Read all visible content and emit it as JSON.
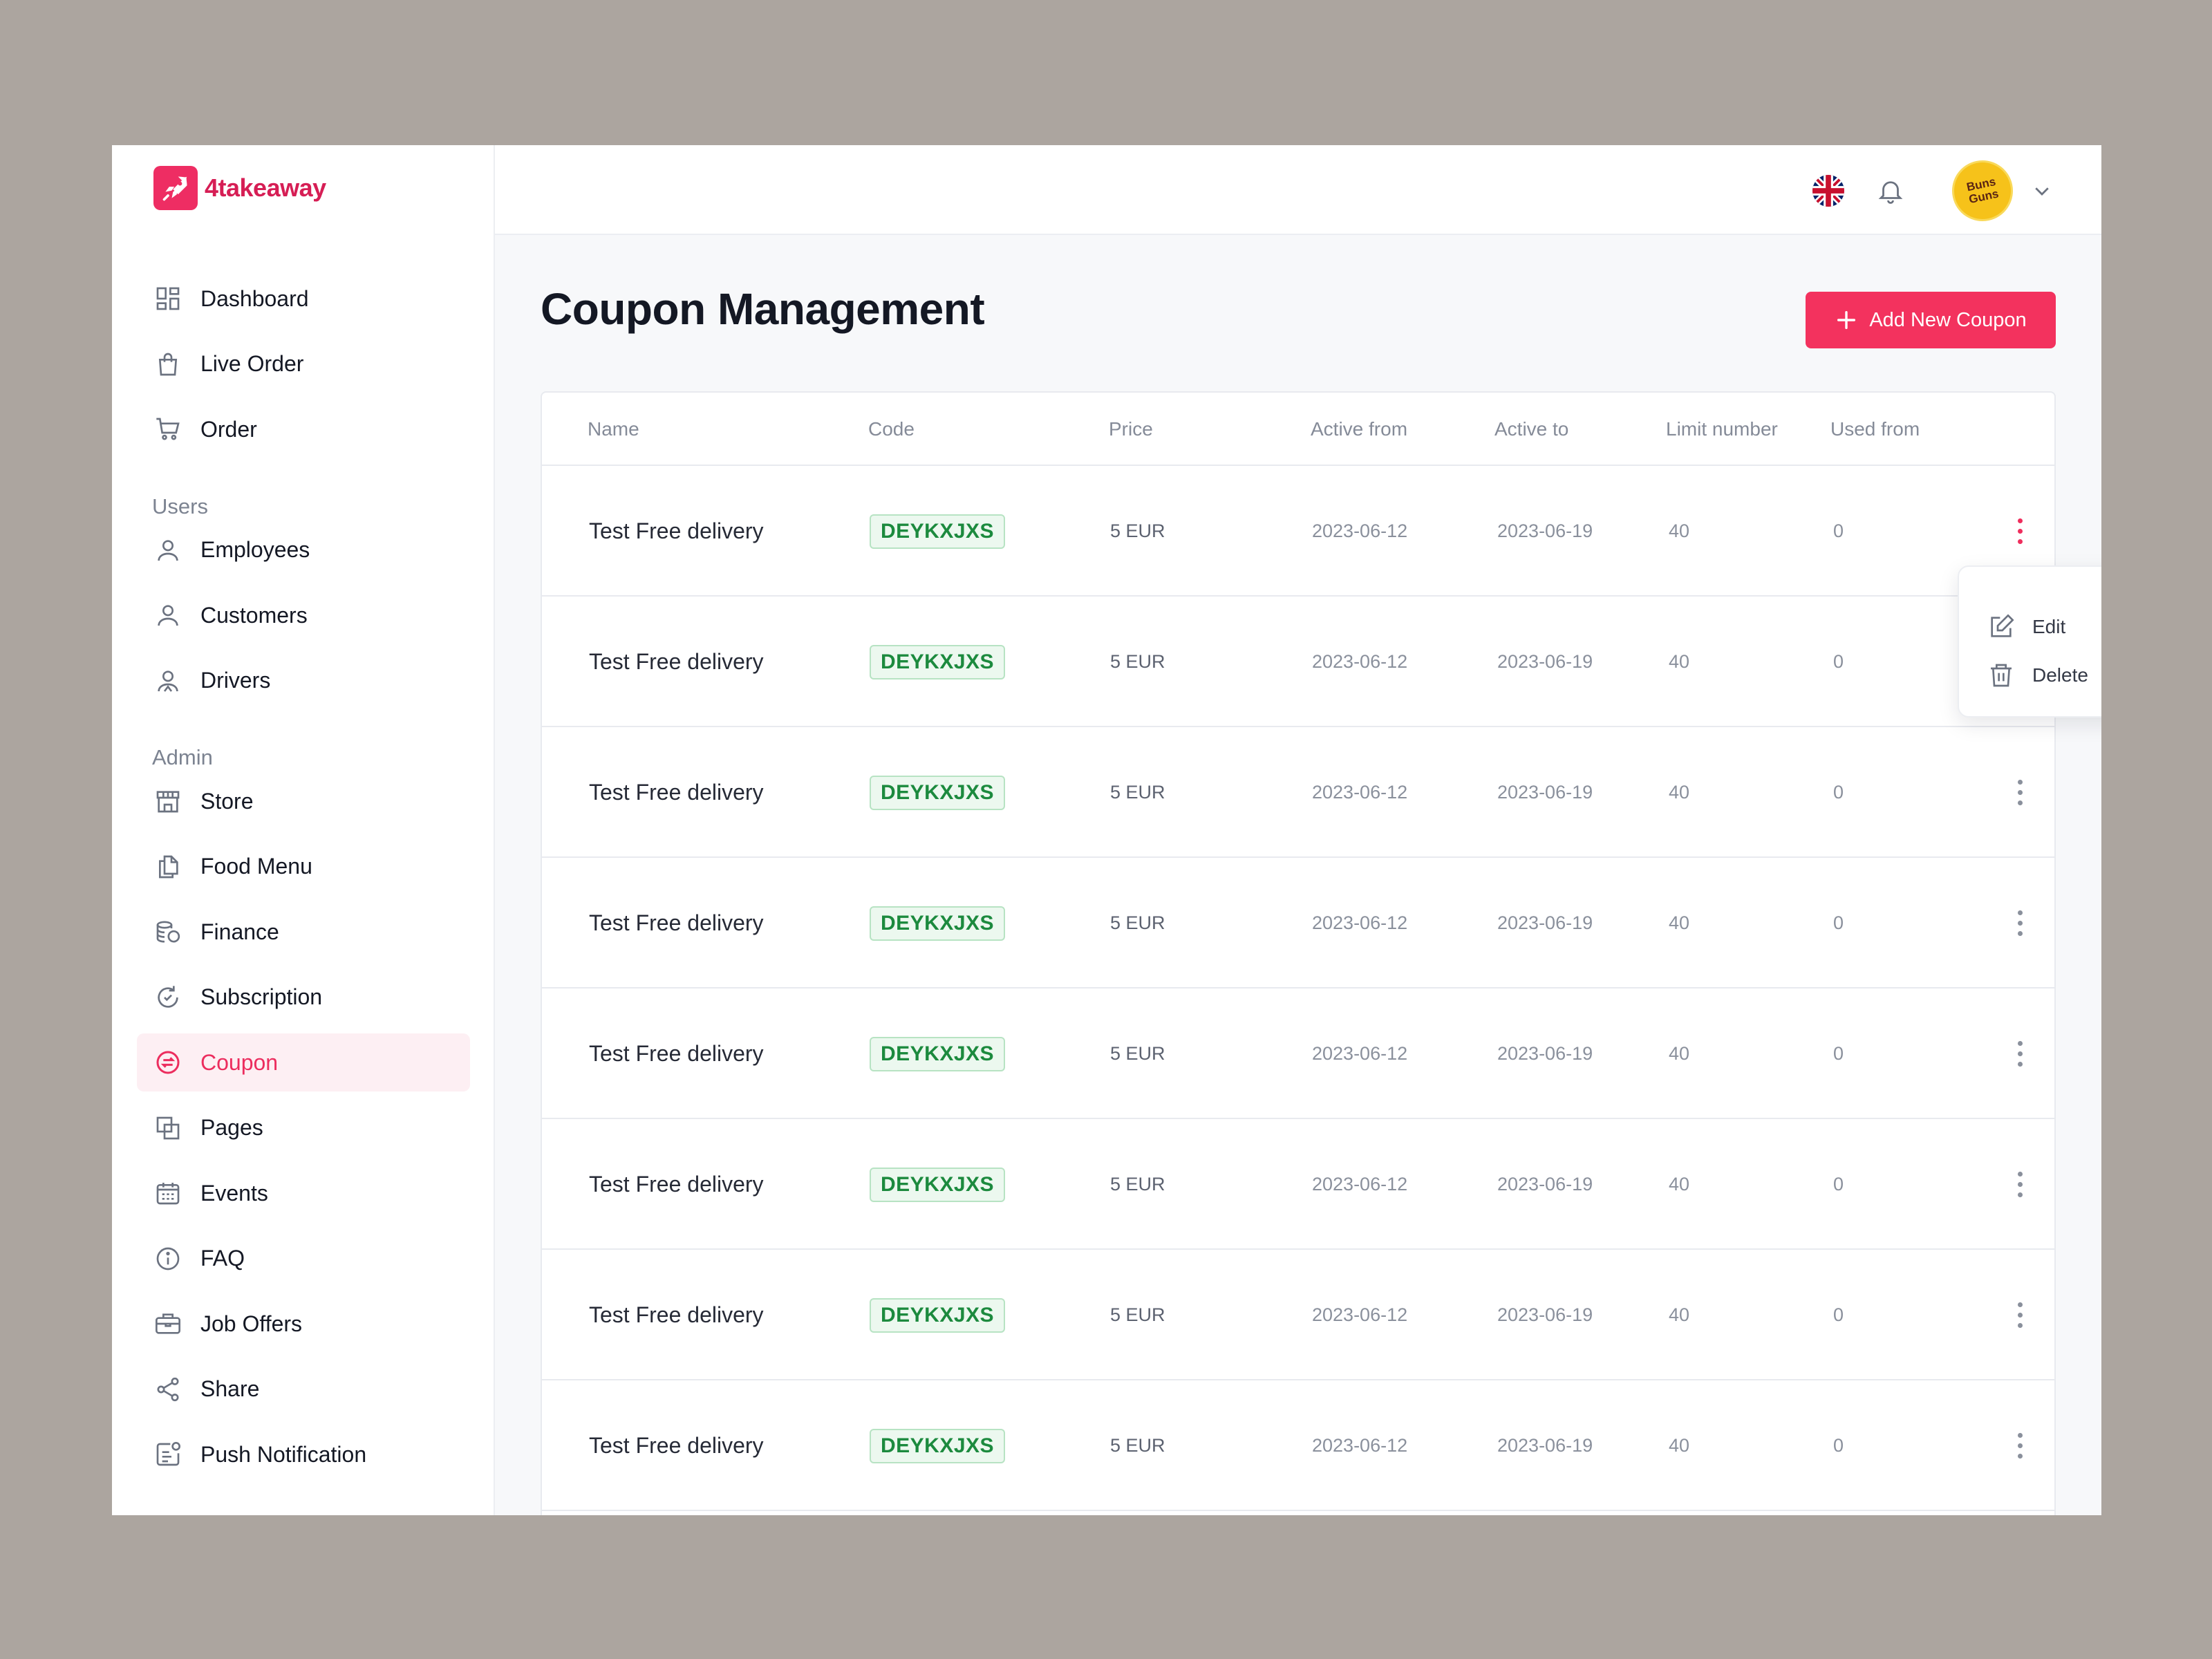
{
  "brand": {
    "name": "4takeaway",
    "accent": "#ee2d63"
  },
  "sidebar": {
    "main_items": [
      {
        "label": "Dashboard",
        "icon": "dashboard-icon"
      },
      {
        "label": "Live Order",
        "icon": "bag-icon"
      },
      {
        "label": "Order",
        "icon": "cart-icon"
      }
    ],
    "users_label": "Users",
    "users_items": [
      {
        "label": "Employees",
        "icon": "user-icon"
      },
      {
        "label": "Customers",
        "icon": "user-icon"
      },
      {
        "label": "Drivers",
        "icon": "driver-icon"
      }
    ],
    "admin_label": "Admin",
    "admin_items": [
      {
        "label": "Store",
        "icon": "store-icon"
      },
      {
        "label": "Food Menu",
        "icon": "documents-icon"
      },
      {
        "label": "Finance",
        "icon": "coins-icon"
      },
      {
        "label": "Subscription",
        "icon": "subscription-icon"
      },
      {
        "label": "Coupon",
        "icon": "coupon-icon",
        "active": true
      },
      {
        "label": "Pages",
        "icon": "pages-icon"
      },
      {
        "label": "Events",
        "icon": "calendar-icon"
      },
      {
        "label": "FAQ",
        "icon": "info-icon"
      },
      {
        "label": "Job Offers",
        "icon": "briefcase-icon"
      },
      {
        "label": "Share",
        "icon": "share-icon"
      },
      {
        "label": "Push Notification",
        "icon": "notification-icon"
      }
    ]
  },
  "header": {
    "language_icon": "uk-flag-icon",
    "notification_icon": "bell-icon",
    "avatar_text": "Buns Guns"
  },
  "main": {
    "title": "Coupon Management",
    "add_button_label": "Add New Coupon"
  },
  "table": {
    "columns": [
      "Name",
      "Code",
      "Price",
      "Active from",
      "Active to",
      "Limit number",
      "Used from"
    ],
    "rows": [
      {
        "name": "Test Free delivery",
        "code": "DEYKXJXS",
        "price": "5 EUR",
        "active_from": "2023-06-12",
        "active_to": "2023-06-19",
        "limit": "40",
        "used": "0"
      },
      {
        "name": "Test Free delivery",
        "code": "DEYKXJXS",
        "price": "5 EUR",
        "active_from": "2023-06-12",
        "active_to": "2023-06-19",
        "limit": "40",
        "used": "0"
      },
      {
        "name": "Test Free delivery",
        "code": "DEYKXJXS",
        "price": "5 EUR",
        "active_from": "2023-06-12",
        "active_to": "2023-06-19",
        "limit": "40",
        "used": "0"
      },
      {
        "name": "Test Free delivery",
        "code": "DEYKXJXS",
        "price": "5 EUR",
        "active_from": "2023-06-12",
        "active_to": "2023-06-19",
        "limit": "40",
        "used": "0"
      },
      {
        "name": "Test Free delivery",
        "code": "DEYKXJXS",
        "price": "5 EUR",
        "active_from": "2023-06-12",
        "active_to": "2023-06-19",
        "limit": "40",
        "used": "0"
      },
      {
        "name": "Test Free delivery",
        "code": "DEYKXJXS",
        "price": "5 EUR",
        "active_from": "2023-06-12",
        "active_to": "2023-06-19",
        "limit": "40",
        "used": "0"
      },
      {
        "name": "Test Free delivery",
        "code": "DEYKXJXS",
        "price": "5 EUR",
        "active_from": "2023-06-12",
        "active_to": "2023-06-19",
        "limit": "40",
        "used": "0"
      },
      {
        "name": "Test Free delivery",
        "code": "DEYKXJXS",
        "price": "5 EUR",
        "active_from": "2023-06-12",
        "active_to": "2023-06-19",
        "limit": "40",
        "used": "0"
      }
    ]
  },
  "row_menu": {
    "edit_label": "Edit",
    "delete_label": "Delete"
  }
}
